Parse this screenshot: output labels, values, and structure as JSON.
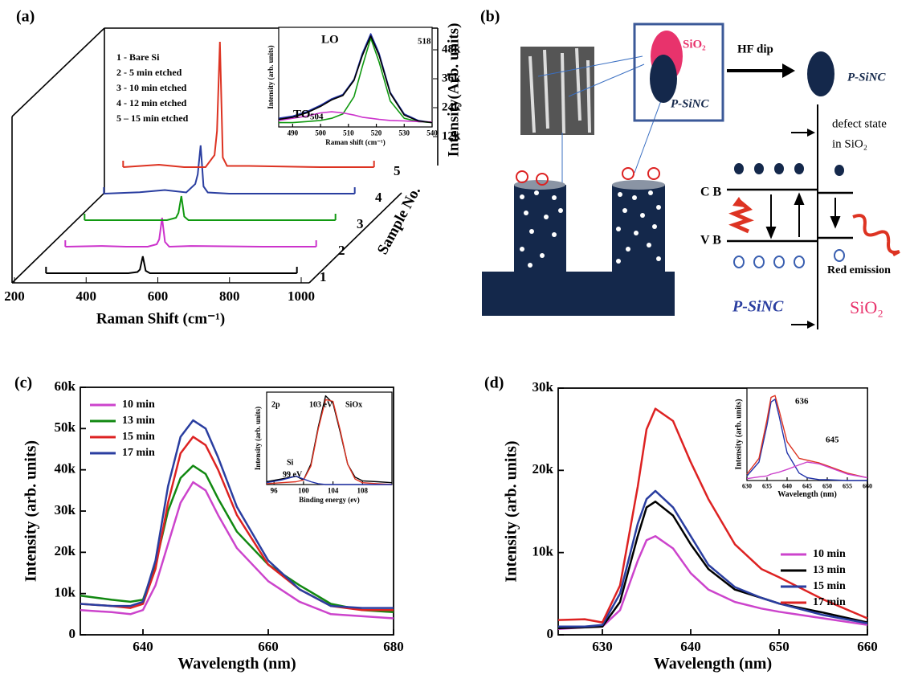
{
  "chart_data": [
    {
      "type": "waterfall",
      "panel_label": "(a)",
      "x_label": "Raman Shift (cm⁻¹)",
      "y_label": "Intensity(Arb. units)",
      "depth_label": "Sample No.",
      "depth_categories": [
        "1",
        "2",
        "3",
        "4",
        "5"
      ],
      "x": [
        250,
        350,
        420,
        480,
        505,
        512,
        520,
        528,
        540,
        600,
        800,
        950
      ],
      "series": [
        {
          "name": "1 - Bare Si",
          "color": "#000000",
          "values": [
            0,
            0,
            0,
            0,
            500,
            1500,
            7000,
            1000,
            0,
            0,
            0,
            0
          ]
        },
        {
          "name": "2 - 5 min etched",
          "color": "#cc33cc",
          "values": [
            0,
            300,
            0,
            0,
            1000,
            3000,
            12000,
            2000,
            0,
            300,
            0,
            0
          ]
        },
        {
          "name": "3 - 10 min etched",
          "color": "#119911",
          "values": [
            0,
            0,
            0,
            0,
            1000,
            3000,
            10000,
            1500,
            0,
            0,
            0,
            0
          ]
        },
        {
          "name": "4 - 12 min etched",
          "color": "#2a3ea0",
          "values": [
            0,
            600,
            1500,
            500,
            4000,
            8000,
            20000,
            3000,
            500,
            0,
            0,
            0
          ]
        },
        {
          "name": "5 – 15 min etched",
          "color": "#dd3322",
          "values": [
            0,
            1000,
            0,
            0,
            5000,
            15000,
            52000,
            4000,
            500,
            500,
            0,
            0
          ]
        }
      ],
      "xlim": [
        200,
        1000
      ],
      "xticks": [
        200,
        400,
        600,
        800,
        1000
      ],
      "ylim": [
        0,
        54000
      ],
      "yticks": [
        {
          "value": 12000,
          "label": "12k"
        },
        {
          "value": 24000,
          "label": "24k"
        },
        {
          "value": 36000,
          "label": "36k"
        },
        {
          "value": 48000,
          "label": "48k"
        }
      ]
    },
    {
      "type": "line",
      "x_label": "Raman shift (cm⁻¹)",
      "y_label": "Intensity (arb. units)",
      "x": [
        485,
        490,
        495,
        500,
        504,
        508,
        512,
        515,
        518,
        521,
        525,
        530,
        535,
        540
      ],
      "series": [
        {
          "color": "#2233aa",
          "values": [
            12000,
            13000,
            15000,
            18000,
            21000,
            23000,
            30000,
            42000,
            51000,
            42000,
            24000,
            14000,
            11000,
            10000
          ]
        },
        {
          "color": "#119911",
          "values": [
            10000,
            10000,
            10500,
            11000,
            12000,
            14000,
            22000,
            36000,
            49000,
            38000,
            20000,
            12000,
            10500,
            10000
          ]
        },
        {
          "color": "#cc33cc",
          "values": [
            11000,
            12000,
            13000,
            14500,
            15000,
            14500,
            13500,
            12500,
            12000,
            11500,
            11000,
            10800,
            10500,
            10300
          ]
        },
        {
          "color": "#000000",
          "values": [
            11500,
            12500,
            14500,
            17500,
            20500,
            22500,
            29500,
            41000,
            50000,
            41000,
            23500,
            13500,
            10800,
            10000
          ]
        }
      ],
      "xlim": [
        485,
        540
      ],
      "xticks": [
        490,
        500,
        510,
        520,
        530,
        540
      ],
      "ylim": [
        8000,
        54000
      ],
      "annotations": [
        "LO",
        "518",
        "TO",
        "504"
      ]
    },
    {
      "type": "line",
      "panel_label": "(c)",
      "x_label": "Wavelength (nm)",
      "y_label": "Intensity (arb. units)",
      "legend": "upper left",
      "x": [
        630,
        635,
        638,
        640,
        642,
        644,
        646,
        648,
        650,
        652,
        655,
        660,
        665,
        670,
        675,
        680
      ],
      "series": [
        {
          "name": "10 min",
          "color": "#cc44cc",
          "values": [
            6000,
            5500,
            5000,
            6000,
            12000,
            22000,
            32000,
            37000,
            35000,
            29000,
            21000,
            13000,
            8000,
            5000,
            4500,
            4000
          ]
        },
        {
          "name": "13 min",
          "color": "#118811",
          "values": [
            9500,
            8500,
            8000,
            8500,
            17000,
            30000,
            38000,
            41000,
            39000,
            33000,
            25000,
            17000,
            12000,
            7500,
            6000,
            5500
          ]
        },
        {
          "name": "15 min",
          "color": "#dd2222",
          "values": [
            7500,
            7000,
            6500,
            7500,
            16000,
            32000,
            44000,
            48000,
            46000,
            40000,
            29000,
            17000,
            11000,
            7000,
            6000,
            6000
          ]
        },
        {
          "name": "17 min",
          "color": "#2a3ea0",
          "values": [
            7500,
            7000,
            7000,
            8000,
            18000,
            36000,
            48000,
            52000,
            50000,
            43000,
            31000,
            18000,
            11000,
            7000,
            6500,
            6500
          ]
        }
      ],
      "xlim": [
        630,
        680
      ],
      "xticks": [
        640,
        660,
        680
      ],
      "ylim": [
        0,
        60000
      ],
      "yticks": [
        0,
        {
          "value": 10000,
          "label": "10k"
        },
        {
          "value": 20000,
          "label": "20k"
        },
        {
          "value": 30000,
          "label": "30k"
        },
        {
          "value": 40000,
          "label": "40k"
        },
        {
          "value": 50000,
          "label": "50k"
        },
        {
          "value": 60000,
          "label": "60k"
        }
      ]
    },
    {
      "type": "line",
      "x_label": "Binding energy (ev)",
      "y_label": "Intensity (arb. units)",
      "x": [
        95,
        97,
        99,
        100,
        101,
        102,
        103,
        104,
        105,
        106,
        107,
        108,
        110,
        112
      ],
      "series": [
        {
          "color": "#000000",
          "values": [
            3,
            6,
            9,
            5,
            22,
            62,
            96,
            88,
            56,
            22,
            8,
            4,
            3,
            2
          ]
        },
        {
          "color": "#dd3322",
          "values": [
            1,
            2,
            3,
            5,
            20,
            60,
            92,
            90,
            58,
            22,
            6,
            2,
            1,
            0
          ]
        },
        {
          "color": "#2233aa",
          "values": [
            2,
            5,
            9,
            6,
            3,
            1,
            0,
            0,
            0,
            0,
            0,
            0,
            0,
            0
          ]
        }
      ],
      "xlim": [
        95,
        112
      ],
      "xticks": [
        96,
        100,
        104,
        108
      ],
      "ylim": [
        0,
        100
      ],
      "annotations": [
        "2p",
        "103 eV",
        "SiOx",
        "Si",
        "99 eV"
      ]
    },
    {
      "type": "line",
      "panel_label": "(d)",
      "x_label": "Wavelength (nm)",
      "y_label": "Intensity (arb. units)",
      "legend": "lower right",
      "x": [
        625,
        628,
        630,
        632,
        634,
        635,
        636,
        638,
        640,
        642,
        645,
        648,
        650,
        655,
        660
      ],
      "series": [
        {
          "name": "10 min",
          "color": "#cc44cc",
          "values": [
            700,
            900,
            1000,
            3000,
            9000,
            11500,
            12000,
            10500,
            7500,
            5500,
            4000,
            3200,
            2800,
            2000,
            1200
          ]
        },
        {
          "name": "13 min",
          "color": "#000000",
          "values": [
            800,
            900,
            1000,
            4000,
            12000,
            15500,
            16200,
            14500,
            11000,
            8000,
            5500,
            4500,
            3800,
            2700,
            1500
          ]
        },
        {
          "name": "15 min",
          "color": "#2a3ea0",
          "values": [
            1000,
            1000,
            1200,
            5000,
            13500,
            16500,
            17500,
            15500,
            12000,
            8500,
            5800,
            4500,
            3800,
            2400,
            1400
          ]
        },
        {
          "name": "17 min",
          "color": "#dd2222",
          "values": [
            1800,
            1900,
            1500,
            6000,
            18000,
            25000,
            27500,
            26000,
            21000,
            16500,
            11000,
            8000,
            7000,
            4300,
            2000
          ]
        }
      ],
      "xlim": [
        625,
        660
      ],
      "xticks": [
        630,
        640,
        650,
        660
      ],
      "ylim": [
        0,
        30000
      ],
      "yticks": [
        0,
        {
          "value": 10000,
          "label": "10k"
        },
        {
          "value": 20000,
          "label": "20k"
        },
        {
          "value": 30000,
          "label": "30k"
        }
      ]
    },
    {
      "type": "line",
      "x_label": "Wavelength (nm)",
      "y_label": "Intensity (arb. units)",
      "x": [
        630,
        633,
        635,
        636,
        637,
        638,
        640,
        643,
        645,
        648,
        650,
        655,
        660
      ],
      "series": [
        {
          "color": "#2233aa",
          "values": [
            5,
            20,
            60,
            85,
            88,
            70,
            30,
            8,
            3,
            1,
            1,
            0,
            0
          ]
        },
        {
          "color": "#dd3322",
          "values": [
            7,
            24,
            66,
            90,
            92,
            76,
            42,
            24,
            22,
            19,
            16,
            8,
            3
          ]
        },
        {
          "color": "#cc44cc",
          "values": [
            2,
            4,
            5,
            7,
            8,
            9,
            12,
            17,
            20,
            18,
            15,
            7,
            3
          ]
        }
      ],
      "xlim": [
        630,
        660
      ],
      "xticks": [
        630,
        635,
        640,
        645,
        650,
        655,
        660
      ],
      "ylim": [
        0,
        100
      ],
      "annotations": [
        "636",
        "645"
      ]
    }
  ],
  "diagram": {
    "panel_label": "(b)",
    "sio2_label": "SiO₂",
    "sinc_label": "P-SiNC",
    "hf_dip": "HF dip",
    "sinc_label_2": "P-SiNC",
    "defect_state": "defect state",
    "defect_state_2": "in SiO₂",
    "cb": "C B",
    "vb": "V B",
    "red_emission": "Red emission",
    "sinc_label_3": "P-SiNC",
    "sio2_label_2": "SiO₂"
  }
}
